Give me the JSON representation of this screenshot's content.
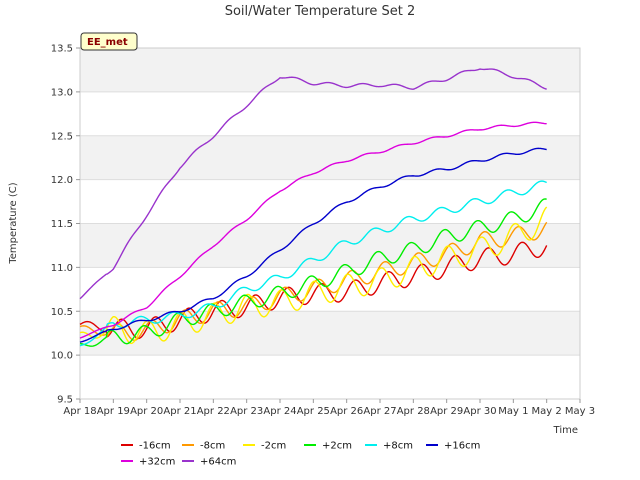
{
  "chart_data": {
    "type": "line",
    "title": "Soil/Water Temperature Set 2",
    "xlabel": "Time",
    "ylabel": "Temperature (C)",
    "ylim": [
      9.5,
      13.5
    ],
    "yticks": [
      "9.5",
      "10.0",
      "10.5",
      "11.0",
      "11.5",
      "12.0",
      "12.5",
      "13.0",
      "13.5"
    ],
    "xlim": [
      "2024-04-18",
      "2024-05-03"
    ],
    "xticks": [
      "Apr 18",
      "Apr 19",
      "Apr 20",
      "Apr 21",
      "Apr 22",
      "Apr 23",
      "Apr 24",
      "Apr 25",
      "Apr 26",
      "Apr 27",
      "Apr 28",
      "Apr 29",
      "Apr 30",
      "May 1",
      "May 2",
      "May 3"
    ],
    "x": [
      "2024-04-18",
      "2024-04-19",
      "2024-04-20",
      "2024-04-21",
      "2024-04-22",
      "2024-04-23",
      "2024-04-24",
      "2024-04-25",
      "2024-04-26",
      "2024-04-27",
      "2024-04-28",
      "2024-04-29",
      "2024-04-30",
      "2024-05-01",
      "2024-05-02"
    ],
    "grid": true,
    "badge": "EE_met",
    "legend_position": "bottom",
    "series": [
      {
        "name": "-16cm",
        "color": "#dd0000",
        "values": [
          10.35,
          10.3,
          10.3,
          10.4,
          10.5,
          10.55,
          10.65,
          10.7,
          10.72,
          10.82,
          10.9,
          11.0,
          11.1,
          11.15,
          11.25
        ]
      },
      {
        "name": "-8cm",
        "color": "#ff9900",
        "values": [
          10.3,
          10.25,
          10.28,
          10.4,
          10.5,
          10.55,
          10.66,
          10.75,
          10.85,
          10.95,
          11.05,
          11.15,
          11.3,
          11.35,
          11.45
        ]
      },
      {
        "name": "-2cm",
        "color": "#ffee00",
        "values": [
          10.2,
          10.3,
          10.25,
          10.35,
          10.45,
          10.55,
          10.6,
          10.7,
          10.78,
          10.85,
          10.98,
          11.1,
          11.2,
          11.35,
          11.55
        ]
      },
      {
        "name": "+2cm",
        "color": "#00ee00",
        "values": [
          10.1,
          10.2,
          10.25,
          10.4,
          10.5,
          10.6,
          10.7,
          10.82,
          10.95,
          11.1,
          11.2,
          11.35,
          11.45,
          11.55,
          11.7
        ]
      },
      {
        "name": "+8cm",
        "color": "#00eeee",
        "values": [
          10.1,
          10.35,
          10.4,
          10.45,
          10.55,
          10.75,
          10.88,
          11.08,
          11.28,
          11.42,
          11.55,
          11.65,
          11.75,
          11.85,
          11.95
        ]
      },
      {
        "name": "+16cm",
        "color": "#0000cc",
        "values": [
          10.15,
          10.3,
          10.4,
          10.5,
          10.65,
          10.9,
          11.2,
          11.5,
          11.75,
          11.92,
          12.05,
          12.12,
          12.22,
          12.3,
          12.35
        ]
      },
      {
        "name": "+32cm",
        "color": "#dd00dd",
        "values": [
          10.2,
          10.35,
          10.55,
          10.9,
          11.25,
          11.55,
          11.88,
          12.08,
          12.22,
          12.32,
          12.42,
          12.5,
          12.58,
          12.62,
          12.65
        ]
      },
      {
        "name": "+64cm",
        "color": "#9933cc",
        "values": [
          10.65,
          11.0,
          11.6,
          12.15,
          12.5,
          12.85,
          13.18,
          13.1,
          13.07,
          13.08,
          13.05,
          13.15,
          13.28,
          13.18,
          13.05
        ]
      }
    ]
  }
}
